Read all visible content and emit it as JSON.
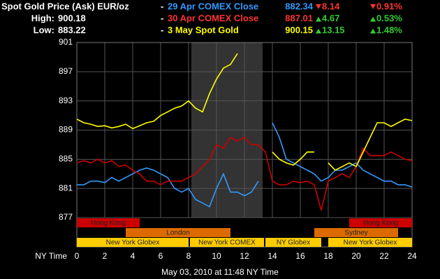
{
  "chart_data": {
    "type": "line",
    "title": "Spot Gold Price (Ask) EUR/oz",
    "high_label": "High:",
    "high": "900.18",
    "low_label": "Low:",
    "low": "883.22",
    "x_label": "NY Time",
    "footer": "May 03, 2010 at 11:48 NY Time",
    "x": [
      0,
      0.5,
      1,
      1.5,
      2,
      2.5,
      3,
      3.5,
      4,
      4.5,
      5,
      5.5,
      6,
      6.5,
      7,
      7.5,
      8,
      8.5,
      9,
      9.5,
      10,
      10.5,
      11,
      11.5,
      12,
      12.5,
      13,
      13.5,
      14,
      14.5,
      15,
      15.5,
      16,
      16.5,
      17,
      17.5,
      18,
      18.5,
      19,
      19.5,
      20,
      20.5,
      21,
      21.5,
      22,
      22.5,
      23,
      23.5,
      24
    ],
    "series": [
      {
        "name": "29 Apr COMEX Close",
        "color": "#3399ff",
        "close": "882.34",
        "change": "8.14",
        "change_pct": "0.91%",
        "direction": "down",
        "values": [
          881.5,
          881.5,
          882,
          882,
          881.8,
          882.5,
          882,
          882.5,
          883,
          883.5,
          883.8,
          883.5,
          883,
          882.5,
          881,
          880.5,
          881,
          879.5,
          879,
          878.5,
          881,
          883,
          880.5,
          880.5,
          880,
          880.5,
          882,
          null,
          890,
          888,
          885,
          884.5,
          884,
          883.5,
          883,
          882,
          882.5,
          883.5,
          883.5,
          884,
          884.5,
          883.5,
          883,
          882.5,
          882,
          882,
          881.5,
          881.5,
          881.2
        ]
      },
      {
        "name": "30 Apr COMEX Close",
        "color": "#cc0000",
        "close": "887.01",
        "change": "4.67",
        "change_pct": "0.53%",
        "direction": "up",
        "values": [
          884.5,
          884.8,
          884.5,
          885,
          884.5,
          884.8,
          884,
          884.2,
          883.5,
          883,
          882,
          882,
          881.5,
          882,
          882,
          882,
          882.5,
          883,
          884,
          885,
          887,
          886.5,
          888,
          887.5,
          888,
          887,
          887,
          886,
          882,
          881.5,
          881.5,
          882,
          881.8,
          882,
          881.5,
          878,
          882,
          882.5,
          883,
          882.5,
          884,
          886.5,
          885.5,
          885.5,
          885.5,
          886,
          885.5,
          885,
          884.8
        ]
      },
      {
        "name": "3 May Spot Gold",
        "color": "#ffff00",
        "close": "900.15",
        "change": "13.15",
        "change_pct": "1.48%",
        "direction": "up",
        "values": [
          890.5,
          890,
          889.8,
          889.5,
          889.6,
          889.3,
          889.5,
          889.8,
          889.2,
          889.6,
          890,
          890.2,
          891,
          891.5,
          892,
          892.3,
          893,
          892,
          891.5,
          894,
          896,
          897.5,
          898,
          899.5,
          null,
          null,
          null,
          null,
          886,
          885,
          884.5,
          884.2,
          885,
          886,
          886,
          null,
          884.5,
          883.5,
          884,
          884.5,
          884,
          886,
          888,
          890,
          890,
          889.5,
          890,
          890.5,
          890.3
        ]
      }
    ],
    "xlim": [
      0,
      24
    ],
    "xticks": [
      0,
      2,
      4,
      6,
      8,
      10,
      12,
      14,
      16,
      18,
      20,
      22,
      24
    ],
    "ylim": [
      877,
      901
    ],
    "yticks": [
      877,
      881,
      885,
      889,
      893,
      897,
      901
    ],
    "grid": true,
    "highlight": [
      8.2,
      13.3
    ],
    "sessions": [
      {
        "label": "Hong Kong",
        "start": 0,
        "end": 4.5,
        "row": 0,
        "color": "#cc0000"
      },
      {
        "label": "Hong Kong",
        "start": 19.5,
        "end": 24,
        "row": 0,
        "color": "#cc0000"
      },
      {
        "label": "London",
        "start": 3.5,
        "end": 11,
        "row": 1,
        "color": "#dd6a00"
      },
      {
        "label": "Sydney",
        "start": 17,
        "end": 23,
        "row": 1,
        "color": "#dd6a00"
      },
      {
        "label": "New York Globex",
        "start": 0,
        "end": 8,
        "row": 2,
        "color": "#ffcc00"
      },
      {
        "label": "New York COMEX",
        "start": 8.1,
        "end": 13.4,
        "row": 2,
        "color": "#ffcc00"
      },
      {
        "label": "NY Globex",
        "start": 13.5,
        "end": 17.5,
        "row": 2,
        "color": "#ffcc00"
      },
      {
        "label": "New York Globex",
        "start": 18,
        "end": 24,
        "row": 2,
        "color": "#ffcc00"
      }
    ]
  }
}
